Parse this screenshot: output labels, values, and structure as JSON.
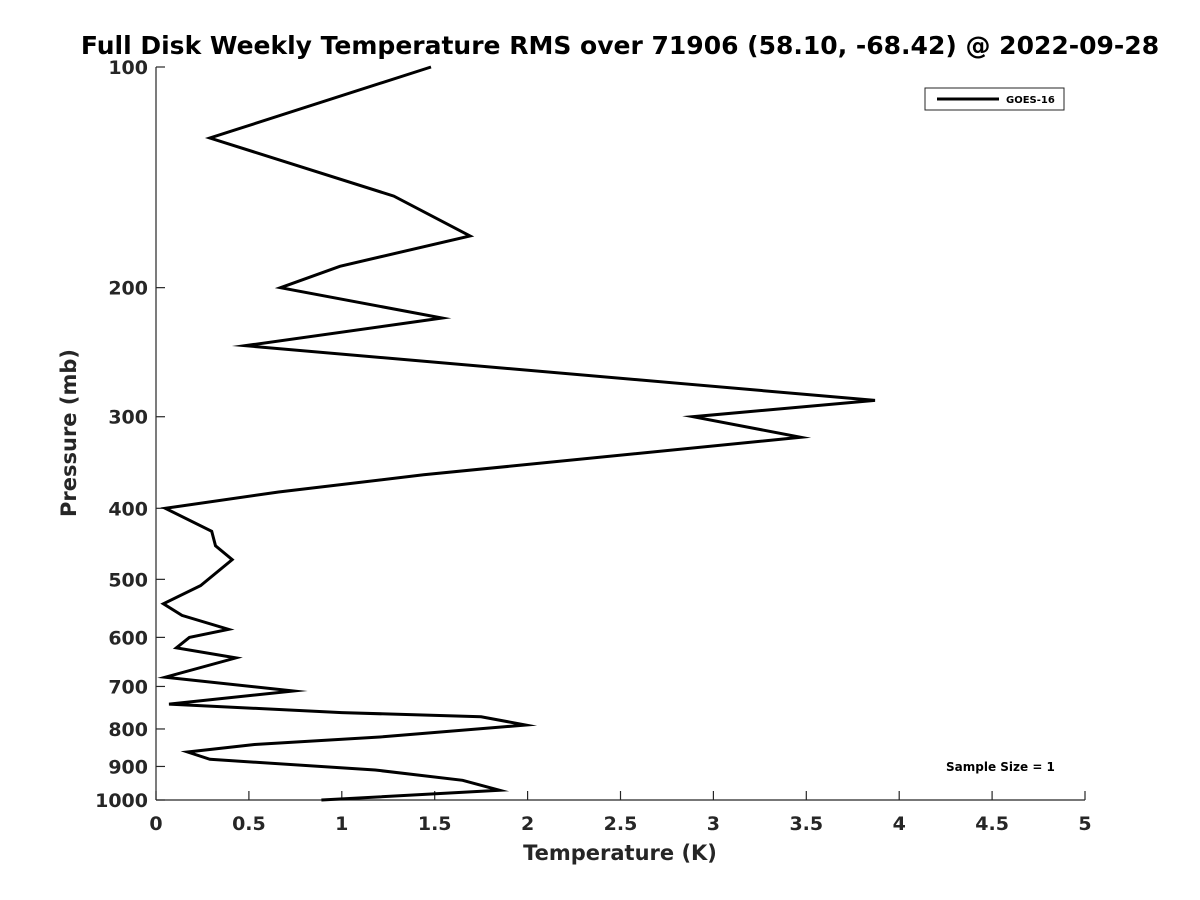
{
  "chart_data": {
    "type": "line",
    "title": "Full Disk Weekly Temperature RMS over 71906 (58.10, -68.42) @ 2022-09-28",
    "xlabel": "Temperature (K)",
    "ylabel": "Pressure (mb)",
    "xlim": [
      0,
      5
    ],
    "ylim": [
      100,
      1000
    ],
    "y_scale": "log",
    "y_reversed": true,
    "x_ticks": [
      0,
      0.5,
      1,
      1.5,
      2,
      2.5,
      3,
      3.5,
      4,
      4.5,
      5
    ],
    "x_tick_labels": [
      "0",
      "0.5",
      "1",
      "1.5",
      "2",
      "2.5",
      "3",
      "3.5",
      "4",
      "4.5",
      "5"
    ],
    "y_ticks": [
      100,
      200,
      300,
      400,
      500,
      600,
      700,
      800,
      900,
      1000
    ],
    "y_tick_labels": [
      "100",
      "200",
      "300",
      "400",
      "500",
      "600",
      "700",
      "800",
      "900",
      "1000"
    ],
    "grid": false,
    "legend_position": "top-right",
    "series": [
      {
        "name": "GOES-16",
        "color": "#000000",
        "x": [
          1.48,
          0.29,
          1.28,
          1.69,
          0.99,
          0.67,
          1.54,
          0.48,
          3.87,
          2.89,
          3.47,
          1.44,
          0.66,
          0.05,
          0.3,
          0.32,
          0.41,
          0.24,
          0.04,
          0.14,
          0.39,
          0.18,
          0.11,
          0.43,
          0.05,
          0.74,
          0.07,
          1.0,
          1.75,
          1.99,
          1.22,
          0.53,
          0.17,
          0.29,
          1.18,
          1.65,
          1.85,
          0.89
        ],
        "y": [
          100,
          125,
          150,
          170,
          187,
          200,
          220,
          240,
          285,
          300,
          320,
          360,
          380,
          400,
          430,
          450,
          470,
          510,
          540,
          560,
          585,
          600,
          620,
          640,
          680,
          710,
          740,
          760,
          770,
          790,
          820,
          840,
          860,
          880,
          910,
          940,
          970,
          1000
        ]
      }
    ],
    "annotations": [
      "Sample Size = 1"
    ]
  }
}
